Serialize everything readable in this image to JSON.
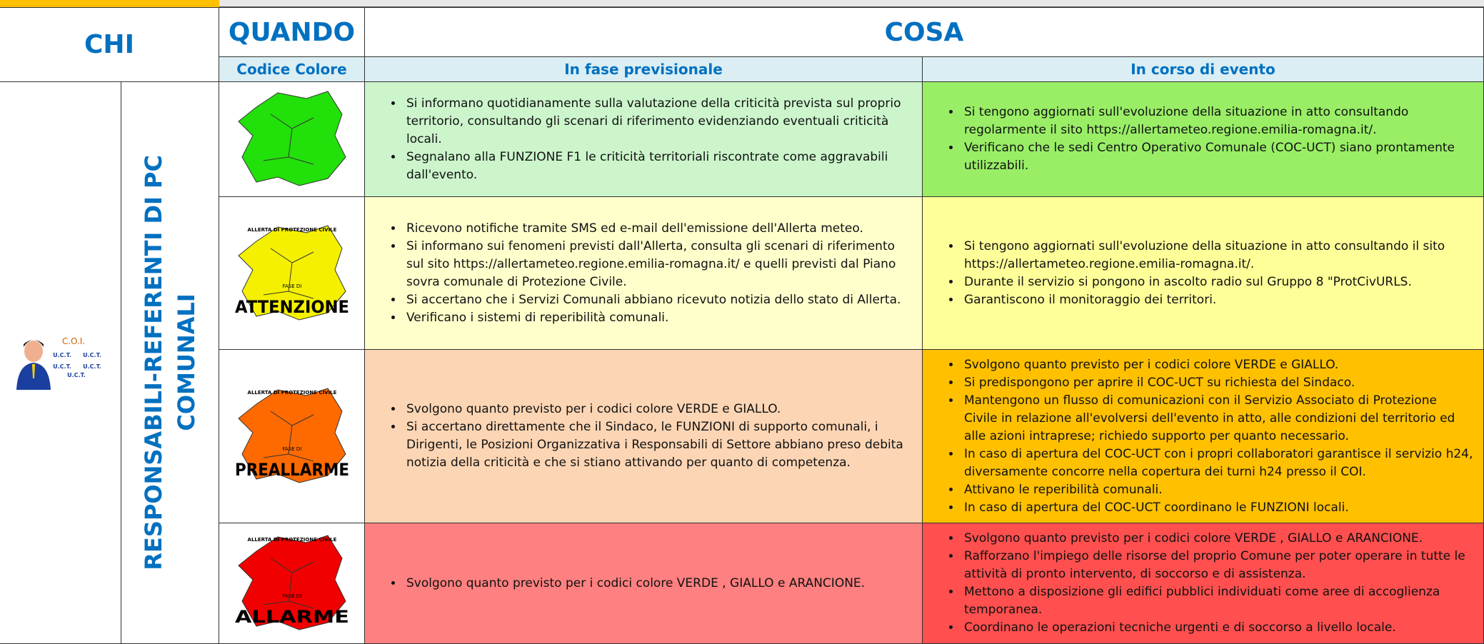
{
  "header": {
    "chi": "CHI",
    "quando": "QUANDO",
    "cosa": "COSA",
    "codice_colore": "Codice Colore",
    "in_fase_previsionale": "In fase previsionale",
    "in_corso_di_evento": "In corso di evento"
  },
  "side": {
    "vertical_label": [
      "RESPONSABILI-REFERENTI DI PC",
      "COMUNALI"
    ],
    "icon_title": "C.O.I.",
    "icon_labels": [
      "U.C.T.",
      "U.C.T.",
      "U.C.T.",
      "U.C.T.",
      "U.C.T."
    ]
  },
  "rows": [
    {
      "map_color": "#22e00a",
      "prev_bg": "#ccf5cc",
      "corso_bg": "#99ee66",
      "previsionale": [
        "Si informano quotidianamente sulla valutazione della criticità prevista sul proprio territorio, consultando gli scenari di riferimento evidenziando eventuali criticità locali.",
        "Segnalano alla FUNZIONE F1 le criticità territoriali riscontrate come aggravabili dall'evento."
      ],
      "in_corso": [
        "Si tengono aggiornati sull'evoluzione della situazione in atto consultando regolarmente il sito https://allertameteo.regione.emilia-romagna.it/.",
        "Verificano che le sedi Centro Operativo Comunale (COC-UCT) siano prontamente utilizzabili."
      ]
    },
    {
      "map_color": "#f5f000",
      "prev_bg": "#ffffcc",
      "corso_bg": "#ffff99",
      "map_top": "ALLERTA DI PROTEZIONE CIVILE",
      "map_phase": "FASE DI",
      "map_name": "ATTENZIONE",
      "previsionale": [
        "Ricevono notifiche tramite SMS ed e-mail dell'emissione dell'Allerta meteo.",
        "Si informano sui fenomeni previsti dall'Allerta, consulta gli scenari di riferimento sul sito https://allertameteo.regione.emilia-romagna.it/  e quelli previsti dal Piano sovra comunale di Protezione Civile.",
        "Si accertano che i Servizi Comunali abbiano ricevuto notizia dello stato di Allerta.",
        "Verificano i sistemi di reperibilità comunali."
      ],
      "in_corso": [
        "Si tengono aggiornati sull'evoluzione della situazione in atto consultando il sito https://allertameteo.regione.emilia-romagna.it/.",
        "Durante il servizio si pongono in ascolto radio sul Gruppo 8 \"ProtCivURLS.",
        "Garantiscono il monitoraggio dei territori."
      ]
    },
    {
      "map_color": "#ff6a00",
      "prev_bg": "#fcd5b4",
      "corso_bg": "#ffc000",
      "map_top": "ALLERTA DI PROTEZIONE CIVILE",
      "map_phase": "FASE DI",
      "map_name": "PREALLARME",
      "previsionale": [
        "Svolgono quanto previsto per i codici colore VERDE e GIALLO.",
        "Si accertano direttamente che il Sindaco, le FUNZIONI di supporto comunali, i Dirigenti, le Posizioni Organizzativa i Responsabili di Settore abbiano preso debita notizia della criticità e che si stiano attivando per quanto di competenza."
      ],
      "in_corso": [
        "Svolgono quanto previsto per i codici colore VERDE e GIALLO.",
        "Si predispongono per aprire il COC-UCT su richiesta del Sindaco.",
        "Mantengono un flusso di comunicazioni con il Servizio Associato di Protezione Civile in relazione all'evolversi dell'evento in atto, alle condizioni del territorio ed alle azioni intraprese; richiedo supporto per quanto necessario.",
        "In caso di apertura del COC-UCT con i propri collaboratori garantisce il servizio h24, diversamente concorre nella copertura dei turni h24 presso il COI.",
        "Attivano le reperibilità comunali.",
        "In caso di apertura del COC-UCT coordinano le FUNZIONI locali."
      ]
    },
    {
      "map_color": "#f00000",
      "prev_bg": "#ff8080",
      "corso_bg": "#ff4f4f",
      "map_top": "ALLERTA DI PROTEZIONE CIVILE",
      "map_phase": "FASE DI",
      "map_name": "ALLARME",
      "previsionale": [
        "Svolgono quanto previsto per i codici colore VERDE , GIALLO e ARANCIONE."
      ],
      "in_corso": [
        "Svolgono quanto previsto per i codici colore VERDE , GIALLO e ARANCIONE.",
        "Rafforzano l'impiego delle risorse del proprio Comune per poter operare in tutte le attività di pronto intervento, di soccorso e di assistenza.",
        "Mettono a disposizione gli edifici pubblici individuati come aree di accoglienza temporanea.",
        "Coordinano le operazioni tecniche urgenti e di soccorso a livello locale."
      ]
    }
  ]
}
